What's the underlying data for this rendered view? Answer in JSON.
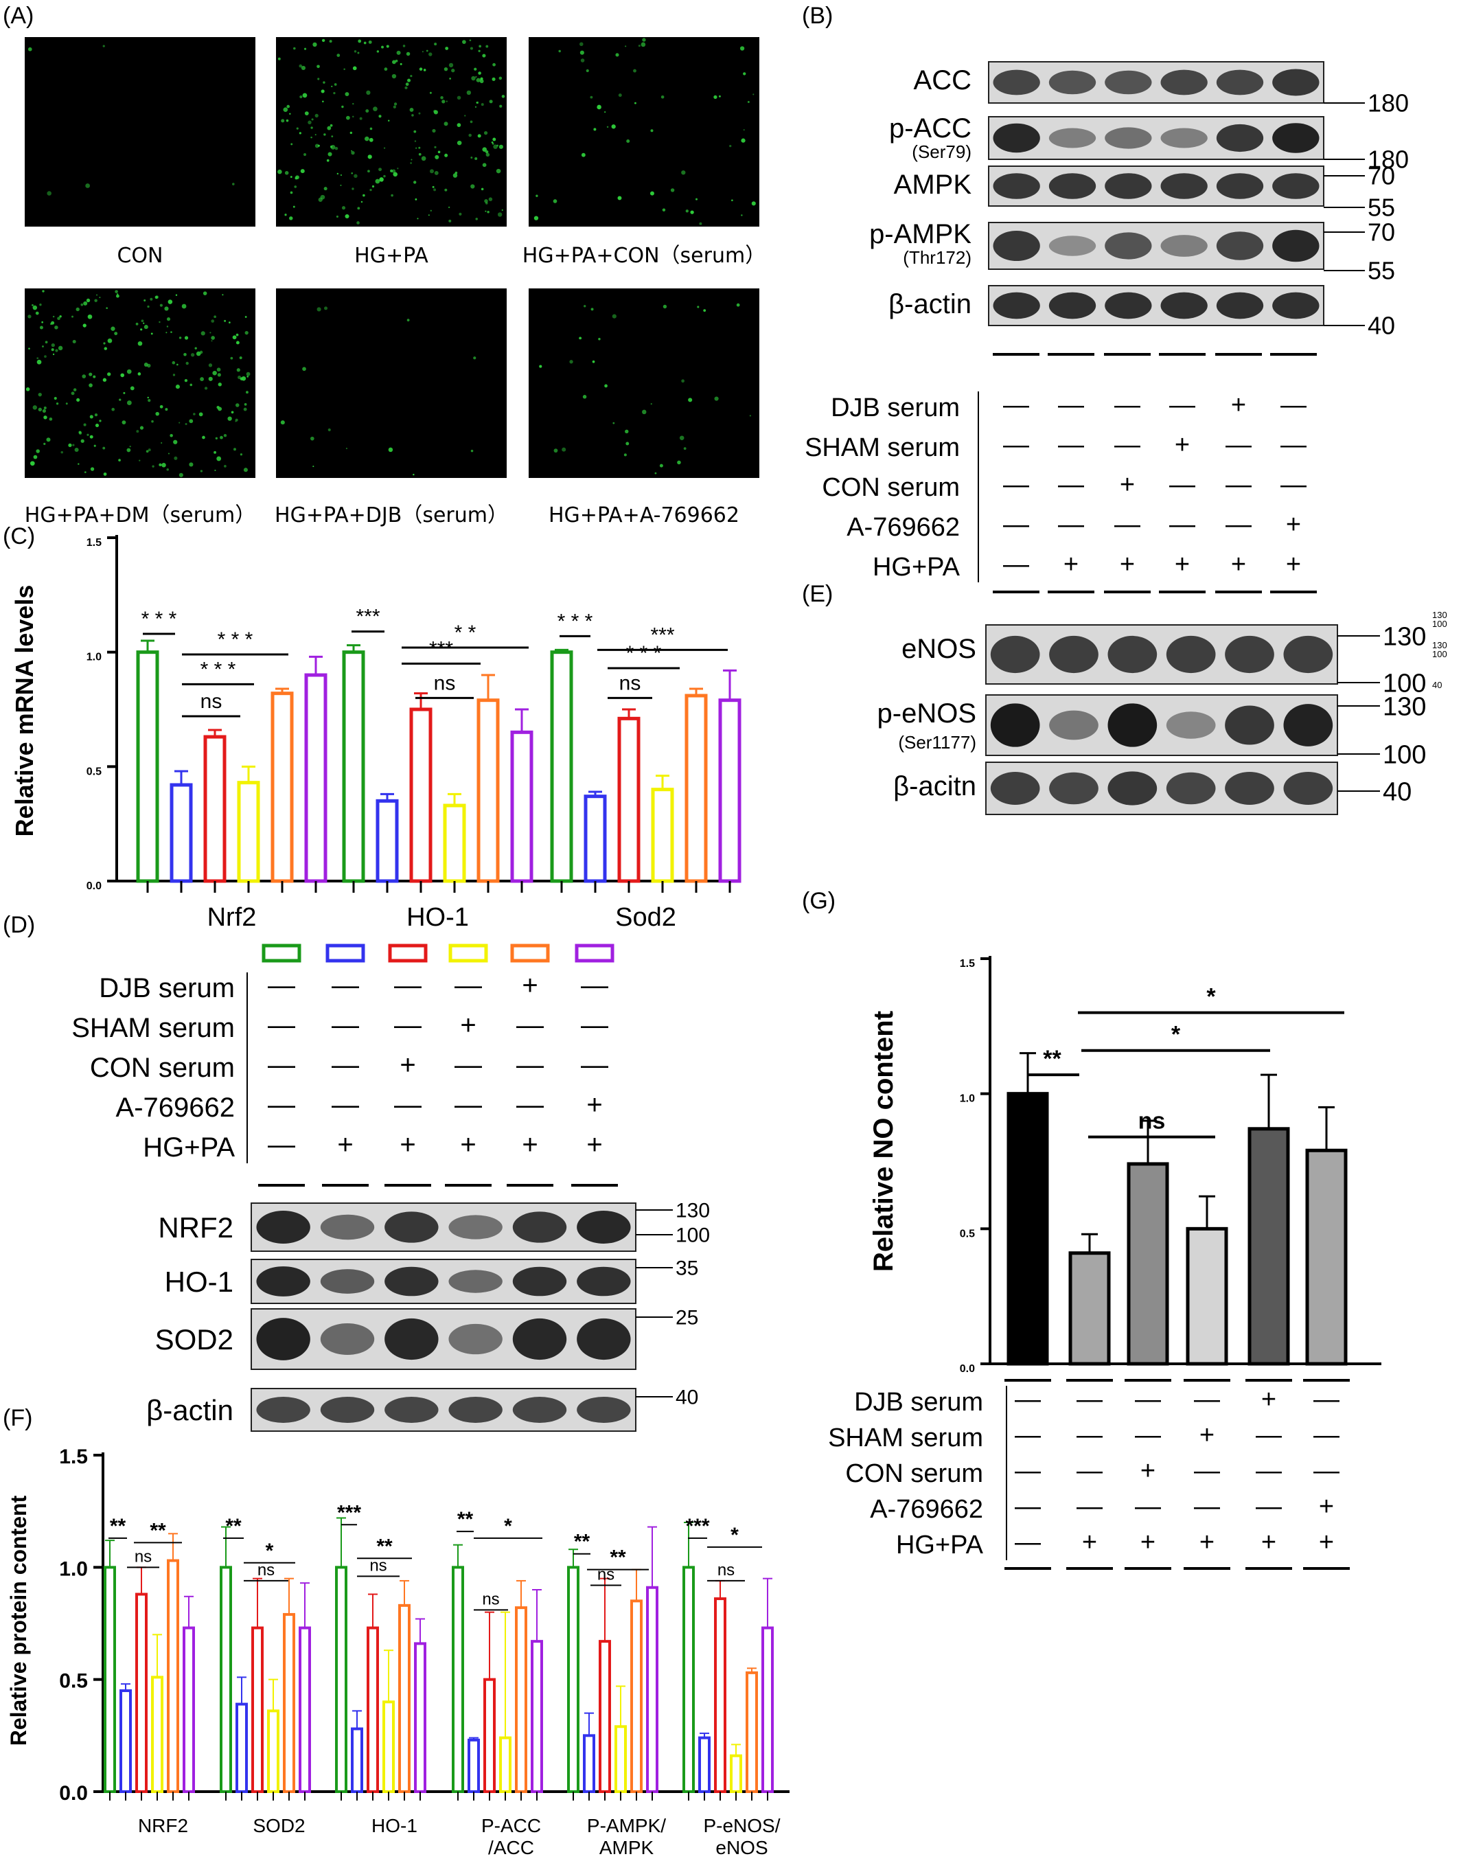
{
  "colors": {
    "green": "#1a9a1a",
    "blue": "#3333ee",
    "red": "#e31a1a",
    "yellow": "#f2f200",
    "orange": "#ff7722",
    "purple": "#a020e0",
    "fluor": "#2ecc3a",
    "blot_bg": "#d9d9d9",
    "band": "#1a1a1a"
  },
  "panel_a": {
    "label": "(A)",
    "images": [
      {
        "caption": "CON",
        "density": 0.02
      },
      {
        "caption": "HG+PA",
        "density": 0.9
      },
      {
        "caption": "HG+PA+CON（serum）",
        "density": 0.18
      },
      {
        "caption": "HG+PA+DM（serum）",
        "density": 0.85
      },
      {
        "caption": "HG+PA+DJB（serum）",
        "density": 0.05
      },
      {
        "caption": "HG+PA+A-769662",
        "density": 0.12
      }
    ]
  },
  "panel_b": {
    "label": "(B)",
    "blots": [
      {
        "name": "ACC",
        "sub": "",
        "markers": [
          "180"
        ]
      },
      {
        "name": "p-ACC",
        "sub": "(Ser79)",
        "markers": [
          "180"
        ]
      },
      {
        "name": "AMPK",
        "sub": "",
        "markers": [
          "70",
          "55"
        ]
      },
      {
        "name": "p-AMPK",
        "sub": "(Thr172)",
        "markers": [
          "70",
          "55"
        ]
      },
      {
        "name": "β-actin",
        "sub": "",
        "markers": [
          "40"
        ]
      }
    ]
  },
  "treatments": {
    "rows": [
      "DJB serum",
      "SHAM serum",
      "CON serum",
      "A-769662",
      "HG+PA"
    ],
    "matrix": [
      [
        "—",
        "—",
        "—",
        "—",
        "+",
        "—"
      ],
      [
        "—",
        "—",
        "—",
        "+",
        "—",
        "—"
      ],
      [
        "—",
        "—",
        "+",
        "—",
        "—",
        "—"
      ],
      [
        "—",
        "—",
        "—",
        "—",
        "—",
        "+"
      ],
      [
        "—",
        "+",
        "+",
        "+",
        "+",
        "+"
      ]
    ]
  },
  "panel_c": {
    "label": "(C)",
    "ylabel": "Relative mRNA levels",
    "chart_data": {
      "type": "bar",
      "categories": [
        "Nrf2",
        "HO-1",
        "Sod2"
      ],
      "series": [
        {
          "color": "green",
          "values": [
            1.0,
            1.0,
            1.0
          ],
          "errors": [
            0.05,
            0.03,
            0.01
          ]
        },
        {
          "color": "blue",
          "values": [
            0.42,
            0.35,
            0.37
          ],
          "errors": [
            0.06,
            0.03,
            0.02
          ]
        },
        {
          "color": "red",
          "values": [
            0.63,
            0.75,
            0.71
          ],
          "errors": [
            0.03,
            0.07,
            0.04
          ]
        },
        {
          "color": "yellow",
          "values": [
            0.43,
            0.33,
            0.4
          ],
          "errors": [
            0.07,
            0.05,
            0.06
          ]
        },
        {
          "color": "orange",
          "values": [
            0.82,
            0.79,
            0.81
          ],
          "errors": [
            0.02,
            0.11,
            0.03
          ]
        },
        {
          "color": "purple",
          "values": [
            0.9,
            0.65,
            0.79
          ],
          "errors": [
            0.08,
            0.1,
            0.13
          ]
        }
      ],
      "ylim": [
        0,
        1.5
      ],
      "yticks": [
        "0.0",
        "0.5",
        "1.0",
        "1.5"
      ],
      "significance": [
        "* * *",
        "* * *",
        "* * *",
        "ns",
        "***",
        "* *",
        "***",
        "ns",
        "* * *",
        "***",
        "* * *",
        "ns"
      ]
    }
  },
  "panel_d": {
    "label": "(D)",
    "blots": [
      {
        "name": "NRF2",
        "markers": [
          "130",
          "100"
        ]
      },
      {
        "name": "HO-1",
        "markers": [
          "35"
        ]
      },
      {
        "name": "SOD2",
        "markers": [
          "25"
        ]
      },
      {
        "name": "β-actin",
        "markers": [
          "40"
        ]
      }
    ]
  },
  "panel_e": {
    "label": "(E)",
    "blots": [
      {
        "name": "eNOS",
        "sub": "",
        "markers": [
          "130",
          "100"
        ]
      },
      {
        "name": "p-eNOS",
        "sub": "(Ser1177)",
        "markers": [
          "130",
          "100"
        ]
      },
      {
        "name": "β-acitn",
        "sub": "",
        "markers": [
          "40"
        ]
      }
    ],
    "tiny_markers": [
      "130",
      "100",
      "130",
      "100",
      "40"
    ]
  },
  "panel_f": {
    "label": "(F)",
    "ylabel": "Relative protein content",
    "chart_data": {
      "type": "bar",
      "categories": [
        "NRF2",
        "SOD2",
        "HO-1",
        "P-ACC\n/ACC",
        "P-AMPK/\nAMPK",
        "P-eNOS/\neNOS"
      ],
      "category_lines": [
        [
          "NRF2"
        ],
        [
          "SOD2"
        ],
        [
          "HO-1"
        ],
        [
          "P-ACC",
          "/ACC"
        ],
        [
          "P-AMPK/",
          "AMPK"
        ],
        [
          "P-eNOS/",
          "eNOS"
        ]
      ],
      "series": [
        {
          "color": "green",
          "values": [
            1.0,
            1.0,
            1.0,
            1.0,
            1.0,
            1.0
          ],
          "errors": [
            0.12,
            0.18,
            0.22,
            0.1,
            0.08,
            0.2
          ]
        },
        {
          "color": "blue",
          "values": [
            0.45,
            0.39,
            0.28,
            0.23,
            0.25,
            0.24
          ],
          "errors": [
            0.03,
            0.12,
            0.08,
            0.01,
            0.1,
            0.02
          ]
        },
        {
          "color": "red",
          "values": [
            0.88,
            0.73,
            0.73,
            0.5,
            0.67,
            0.86
          ],
          "errors": [
            0.12,
            0.22,
            0.15,
            0.3,
            0.28,
            0.08
          ]
        },
        {
          "color": "yellow",
          "values": [
            0.51,
            0.36,
            0.4,
            0.24,
            0.29,
            0.16
          ],
          "errors": [
            0.19,
            0.14,
            0.23,
            0.56,
            0.18,
            0.05
          ]
        },
        {
          "color": "orange",
          "values": [
            1.03,
            0.79,
            0.83,
            0.82,
            0.85,
            0.53
          ],
          "errors": [
            0.12,
            0.16,
            0.11,
            0.12,
            0.14,
            0.02
          ]
        },
        {
          "color": "purple",
          "values": [
            0.73,
            0.73,
            0.66,
            0.67,
            0.91,
            0.73
          ],
          "errors": [
            0.14,
            0.2,
            0.11,
            0.23,
            0.27,
            0.22
          ]
        }
      ],
      "ylim": [
        0,
        1.5
      ],
      "yticks": [
        "0.0",
        "0.5",
        "1.0",
        "1.5"
      ],
      "significance": [
        "**",
        "ns",
        "**",
        "**",
        "ns",
        "*",
        "***",
        "ns",
        "**",
        "**",
        "ns",
        "*",
        "**",
        "ns",
        "**",
        "***",
        "ns",
        "*"
      ]
    }
  },
  "panel_g": {
    "label": "(G)",
    "ylabel": "Relative NO content",
    "chart_data": {
      "type": "bar",
      "values": [
        1.0,
        0.41,
        0.74,
        0.5,
        0.87,
        0.79
      ],
      "errors": [
        0.15,
        0.07,
        0.16,
        0.12,
        0.2,
        0.16
      ],
      "fills": [
        "#000000",
        "#a6a6a6",
        "#8c8c8c",
        "#d4d4d4",
        "#595959",
        "#a6a6a6"
      ],
      "ylim": [
        0,
        1.5
      ],
      "yticks": [
        "0.0",
        "0.5",
        "1.0",
        "1.5"
      ],
      "significance": [
        "**",
        "ns",
        "*",
        "*"
      ]
    }
  }
}
